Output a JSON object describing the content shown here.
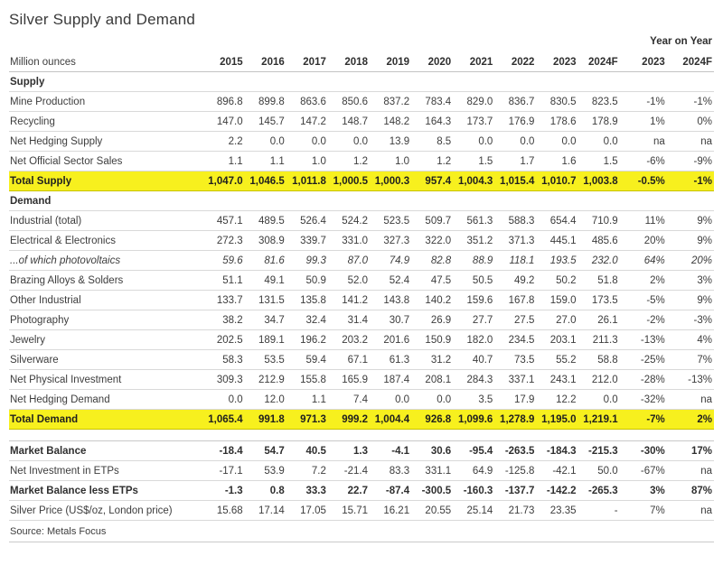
{
  "title": "Silver Supply and Demand",
  "year_on_year_label": "Year on Year",
  "source": "Source: Metals Focus",
  "colors": {
    "highlight": "#f7f01e",
    "text": "#3d3d3d",
    "row_border": "#d9d9d9"
  },
  "table": {
    "unit_label": "Million ounces",
    "columns": [
      "2015",
      "2016",
      "2017",
      "2018",
      "2019",
      "2020",
      "2021",
      "2022",
      "2023",
      "2024F",
      "2023",
      "2024F"
    ],
    "rows": [
      {
        "name": "section-supply",
        "type": "section",
        "label": "Supply",
        "values": []
      },
      {
        "name": "row-mine-production",
        "type": "data",
        "label": "Mine Production",
        "values": [
          "896.8",
          "899.8",
          "863.6",
          "850.6",
          "837.2",
          "783.4",
          "829.0",
          "836.7",
          "830.5",
          "823.5",
          "-1%",
          "-1%"
        ]
      },
      {
        "name": "row-recycling",
        "type": "data",
        "label": "Recycling",
        "values": [
          "147.0",
          "145.7",
          "147.2",
          "148.7",
          "148.2",
          "164.3",
          "173.7",
          "176.9",
          "178.6",
          "178.9",
          "1%",
          "0%"
        ]
      },
      {
        "name": "row-net-hedging-supply",
        "type": "data",
        "label": "Net Hedging Supply",
        "values": [
          "2.2",
          "0.0",
          "0.0",
          "0.0",
          "13.9",
          "8.5",
          "0.0",
          "0.0",
          "0.0",
          "0.0",
          "na",
          "na"
        ]
      },
      {
        "name": "row-net-official-sector-sales",
        "type": "data",
        "label": "Net Official Sector Sales",
        "values": [
          "1.1",
          "1.1",
          "1.0",
          "1.2",
          "1.0",
          "1.2",
          "1.5",
          "1.7",
          "1.6",
          "1.5",
          "-6%",
          "-9%"
        ]
      },
      {
        "name": "row-total-supply",
        "type": "total",
        "label": "Total Supply",
        "values": [
          "1,047.0",
          "1,046.5",
          "1,011.8",
          "1,000.5",
          "1,000.3",
          "957.4",
          "1,004.3",
          "1,015.4",
          "1,010.7",
          "1,003.8",
          "-0.5%",
          "-1%"
        ]
      },
      {
        "name": "section-demand",
        "type": "section",
        "label": "Demand",
        "values": []
      },
      {
        "name": "row-industrial-total",
        "type": "data",
        "label": "Industrial (total)",
        "values": [
          "457.1",
          "489.5",
          "526.4",
          "524.2",
          "523.5",
          "509.7",
          "561.3",
          "588.3",
          "654.4",
          "710.9",
          "11%",
          "9%"
        ]
      },
      {
        "name": "row-electrical-electronics",
        "type": "data",
        "label": "Electrical & Electronics",
        "values": [
          "272.3",
          "308.9",
          "339.7",
          "331.0",
          "327.3",
          "322.0",
          "351.2",
          "371.3",
          "445.1",
          "485.6",
          "20%",
          "9%"
        ]
      },
      {
        "name": "row-of-which-photovoltaics",
        "type": "italic",
        "label": "...of which photovoltaics",
        "values": [
          "59.6",
          "81.6",
          "99.3",
          "87.0",
          "74.9",
          "82.8",
          "88.9",
          "118.1",
          "193.5",
          "232.0",
          "64%",
          "20%"
        ]
      },
      {
        "name": "row-brazing-alloys-solders",
        "type": "data",
        "label": "Brazing Alloys & Solders",
        "values": [
          "51.1",
          "49.1",
          "50.9",
          "52.0",
          "52.4",
          "47.5",
          "50.5",
          "49.2",
          "50.2",
          "51.8",
          "2%",
          "3%"
        ]
      },
      {
        "name": "row-other-industrial",
        "type": "data",
        "label": "Other Industrial",
        "values": [
          "133.7",
          "131.5",
          "135.8",
          "141.2",
          "143.8",
          "140.2",
          "159.6",
          "167.8",
          "159.0",
          "173.5",
          "-5%",
          "9%"
        ]
      },
      {
        "name": "row-photography",
        "type": "data",
        "label": "Photography",
        "values": [
          "38.2",
          "34.7",
          "32.4",
          "31.4",
          "30.7",
          "26.9",
          "27.7",
          "27.5",
          "27.0",
          "26.1",
          "-2%",
          "-3%"
        ]
      },
      {
        "name": "row-jewelry",
        "type": "data",
        "label": "Jewelry",
        "values": [
          "202.5",
          "189.1",
          "196.2",
          "203.2",
          "201.6",
          "150.9",
          "182.0",
          "234.5",
          "203.1",
          "211.3",
          "-13%",
          "4%"
        ]
      },
      {
        "name": "row-silverware",
        "type": "data",
        "label": "Silverware",
        "values": [
          "58.3",
          "53.5",
          "59.4",
          "67.1",
          "61.3",
          "31.2",
          "40.7",
          "73.5",
          "55.2",
          "58.8",
          "-25%",
          "7%"
        ]
      },
      {
        "name": "row-net-physical-investment",
        "type": "data",
        "label": "Net Physical Investment",
        "values": [
          "309.3",
          "212.9",
          "155.8",
          "165.9",
          "187.4",
          "208.1",
          "284.3",
          "337.1",
          "243.1",
          "212.0",
          "-28%",
          "-13%"
        ]
      },
      {
        "name": "row-net-hedging-demand",
        "type": "data",
        "label": "Net Hedging Demand",
        "values": [
          "0.0",
          "12.0",
          "1.1",
          "7.4",
          "0.0",
          "0.0",
          "3.5",
          "17.9",
          "12.2",
          "0.0",
          "-32%",
          "na"
        ]
      },
      {
        "name": "row-total-demand",
        "type": "total",
        "label": "Total Demand",
        "values": [
          "1,065.4",
          "991.8",
          "971.3",
          "999.2",
          "1,004.4",
          "926.8",
          "1,099.6",
          "1,278.9",
          "1,195.0",
          "1,219.1",
          "-7%",
          "2%"
        ]
      },
      {
        "name": "spacer-row",
        "type": "spacer",
        "label": "",
        "values": []
      },
      {
        "name": "row-market-balance",
        "type": "bold",
        "label": "Market Balance",
        "values": [
          "-18.4",
          "54.7",
          "40.5",
          "1.3",
          "-4.1",
          "30.6",
          "-95.4",
          "-263.5",
          "-184.3",
          "-215.3",
          "-30%",
          "17%"
        ]
      },
      {
        "name": "row-net-investment-in-etps",
        "type": "data",
        "label": "Net Investment in ETPs",
        "values": [
          "-17.1",
          "53.9",
          "7.2",
          "-21.4",
          "83.3",
          "331.1",
          "64.9",
          "-125.8",
          "-42.1",
          "50.0",
          "-67%",
          "na"
        ]
      },
      {
        "name": "row-market-balance-less-etps",
        "type": "bold",
        "label": "Market Balance less ETPs",
        "values": [
          "-1.3",
          "0.8",
          "33.3",
          "22.7",
          "-87.4",
          "-300.5",
          "-160.3",
          "-137.7",
          "-142.2",
          "-265.3",
          "3%",
          "87%"
        ]
      },
      {
        "name": "row-silver-price",
        "type": "data",
        "label": "Silver Price (US$/oz, London price)",
        "values": [
          "15.68",
          "17.14",
          "17.05",
          "15.71",
          "16.21",
          "20.55",
          "25.14",
          "21.73",
          "23.35",
          "-",
          "7%",
          "na"
        ]
      }
    ]
  }
}
